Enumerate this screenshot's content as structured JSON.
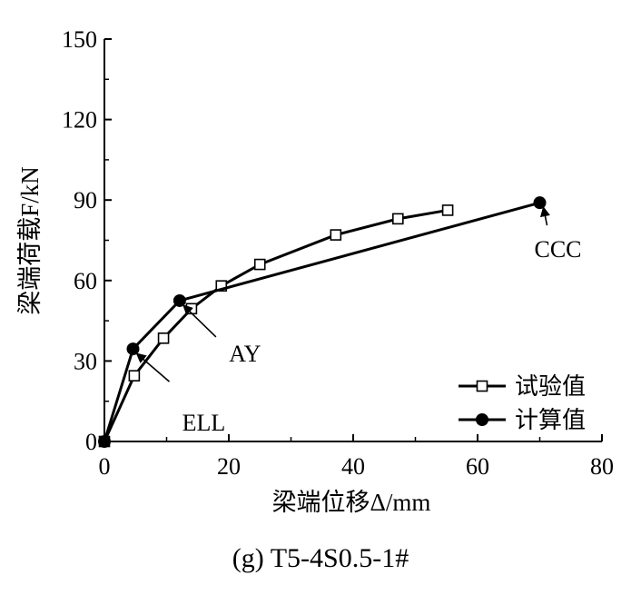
{
  "chart_data": {
    "type": "line",
    "title": "(g) T5-4S0.5-1#",
    "xlabel": "梁端位移Δ/mm",
    "ylabel": "梁端荷载F/kN",
    "xlim": [
      0,
      80
    ],
    "ylim": [
      0,
      150
    ],
    "xticks": [
      "0",
      "20",
      "40",
      "60",
      "80"
    ],
    "yticks": [
      "0",
      "30",
      "60",
      "90",
      "120",
      "150"
    ],
    "grid": false,
    "legend_position": "bottom-right",
    "series": [
      {
        "name": "试验值",
        "marker": "open-square",
        "x": [
          0,
          4.8,
          9.5,
          14,
          18.8,
          25,
          37.2,
          47.2,
          55.2
        ],
        "y": [
          0,
          24.5,
          38.5,
          49.5,
          58,
          66,
          77,
          83,
          86.2
        ]
      },
      {
        "name": "计算值",
        "marker": "filled-circle",
        "x": [
          0,
          4.6,
          12.1,
          70
        ],
        "y": [
          0,
          34.5,
          52.5,
          89
        ]
      }
    ],
    "annotations": [
      {
        "text": "ELL",
        "x": 4.6,
        "y": 34.5
      },
      {
        "text": "AY",
        "x": 12.1,
        "y": 52.5
      },
      {
        "text": "CCC",
        "x": 70,
        "y": 89
      }
    ]
  }
}
